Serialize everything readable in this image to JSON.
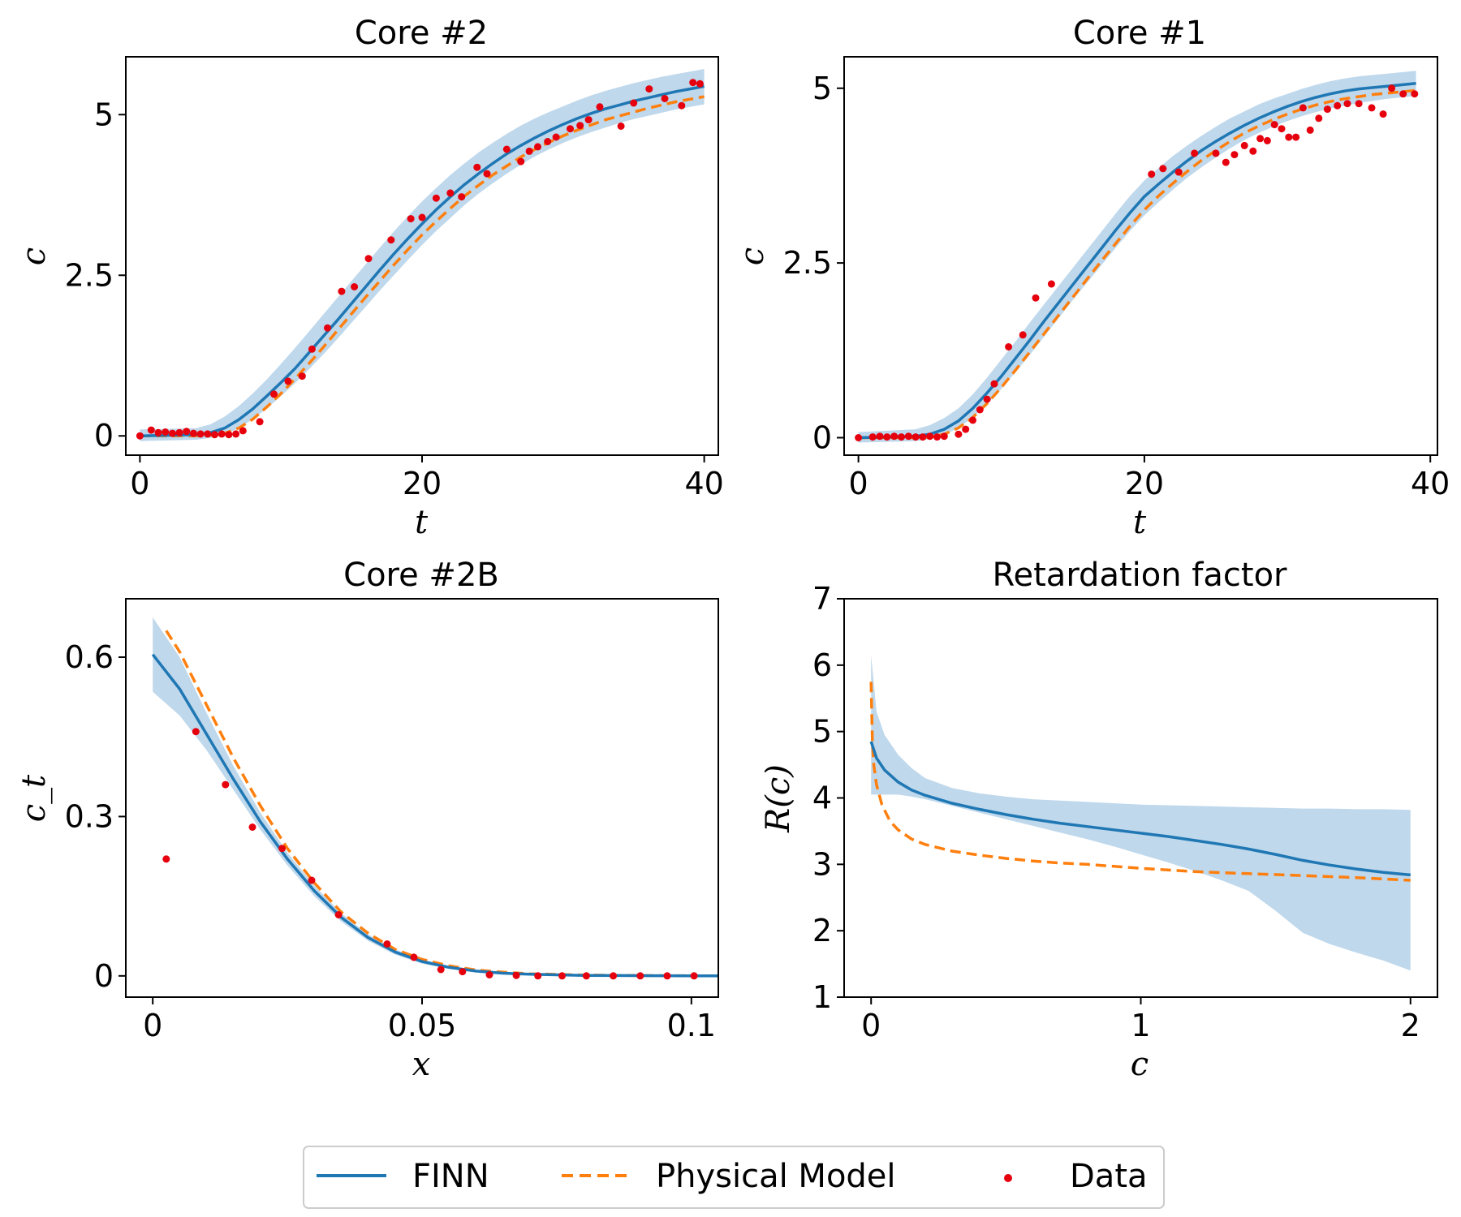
{
  "chart_data": [
    {
      "id": "p1",
      "type": "line",
      "title": "Core #2",
      "xlabel": "t",
      "ylabel": "c",
      "xlim": [
        -1,
        41
      ],
      "ylim": [
        -0.3,
        5.9
      ],
      "xticks": [
        0,
        20,
        40
      ],
      "xtick_labels": [
        "0",
        "20",
        "40"
      ],
      "yticks": [
        0,
        2.5,
        5
      ],
      "ytick_labels": [
        "0",
        "2.5",
        "5"
      ],
      "finn": {
        "x": [
          0,
          4,
          5,
          6,
          7,
          8,
          9,
          10,
          11,
          12,
          13,
          14,
          15,
          16,
          17,
          18,
          19,
          20,
          21,
          22,
          23,
          24,
          25,
          26,
          27,
          28,
          29,
          30,
          31,
          32,
          33,
          34,
          35,
          36,
          37,
          38,
          39,
          40
        ],
        "y": [
          0,
          0.02,
          0.05,
          0.12,
          0.25,
          0.42,
          0.62,
          0.83,
          1.05,
          1.3,
          1.55,
          1.8,
          2.06,
          2.32,
          2.58,
          2.83,
          3.07,
          3.3,
          3.52,
          3.72,
          3.91,
          4.08,
          4.24,
          4.39,
          4.52,
          4.64,
          4.75,
          4.85,
          4.94,
          5.02,
          5.09,
          5.15,
          5.21,
          5.26,
          5.31,
          5.36,
          5.4,
          5.44
        ],
        "band_lower": [
          -0.08,
          -0.06,
          -0.03,
          0.02,
          0.12,
          0.26,
          0.43,
          0.62,
          0.82,
          1.04,
          1.27,
          1.51,
          1.76,
          2.01,
          2.26,
          2.5,
          2.74,
          2.97,
          3.19,
          3.39,
          3.59,
          3.77,
          3.93,
          4.08,
          4.22,
          4.35,
          4.46,
          4.56,
          4.65,
          4.73,
          4.8,
          4.87,
          4.93,
          4.98,
          5.03,
          5.08,
          5.12,
          5.16
        ],
        "band_upper": [
          0.1,
          0.12,
          0.18,
          0.3,
          0.46,
          0.66,
          0.88,
          1.12,
          1.37,
          1.63,
          1.89,
          2.15,
          2.41,
          2.67,
          2.93,
          3.18,
          3.42,
          3.65,
          3.86,
          4.06,
          4.24,
          4.41,
          4.56,
          4.7,
          4.83,
          4.94,
          5.04,
          5.13,
          5.22,
          5.3,
          5.37,
          5.43,
          5.49,
          5.54,
          5.59,
          5.63,
          5.67,
          5.71
        ]
      },
      "physical": {
        "x": [
          0,
          4,
          5,
          6,
          7,
          8,
          9,
          10,
          11,
          12,
          13,
          14,
          15,
          16,
          17,
          18,
          19,
          20,
          21,
          22,
          23,
          24,
          25,
          26,
          27,
          28,
          29,
          30,
          31,
          32,
          33,
          34,
          35,
          36,
          37,
          38,
          39,
          40
        ],
        "y": [
          0,
          0.0,
          0.01,
          0.04,
          0.12,
          0.26,
          0.45,
          0.66,
          0.89,
          1.13,
          1.38,
          1.64,
          1.9,
          2.16,
          2.41,
          2.66,
          2.9,
          3.13,
          3.34,
          3.54,
          3.73,
          3.9,
          4.06,
          4.2,
          4.34,
          4.46,
          4.57,
          4.67,
          4.76,
          4.84,
          4.92,
          4.98,
          5.04,
          5.1,
          5.15,
          5.2,
          5.24,
          5.28
        ]
      },
      "data": {
        "x": [
          0,
          0.8,
          1.3,
          1.8,
          2.3,
          2.8,
          3.3,
          3.8,
          4.3,
          4.8,
          5.3,
          5.8,
          6.3,
          6.8,
          7.3,
          8.5,
          9.5,
          10.5,
          11.5,
          12.2,
          13.3,
          14.3,
          15.2,
          16.2,
          17.8,
          19.2,
          20,
          21,
          22,
          22.8,
          23.9,
          24.6,
          26,
          27,
          27.6,
          28.2,
          28.9,
          29.5,
          30.5,
          31.2,
          31.8,
          32.6,
          34.1,
          35,
          36.1,
          37.2,
          38.4,
          39.2,
          39.7
        ],
        "y": [
          0,
          0.09,
          0.05,
          0.06,
          0.04,
          0.05,
          0.07,
          0.04,
          0.03,
          0.03,
          0.02,
          0.03,
          0.02,
          0.03,
          0.08,
          0.22,
          0.65,
          0.85,
          0.93,
          1.35,
          1.68,
          2.25,
          2.32,
          2.76,
          3.05,
          3.38,
          3.4,
          3.7,
          3.78,
          3.72,
          4.18,
          4.08,
          4.46,
          4.27,
          4.43,
          4.5,
          4.58,
          4.65,
          4.78,
          4.83,
          4.92,
          5.12,
          4.82,
          5.18,
          5.4,
          5.25,
          5.14,
          5.5,
          5.48
        ]
      }
    },
    {
      "id": "p2",
      "type": "line",
      "title": "Core #1",
      "xlabel": "t",
      "ylabel": "c",
      "xlim": [
        -1,
        40.5
      ],
      "ylim": [
        -0.25,
        5.45
      ],
      "xticks": [
        0,
        20,
        40
      ],
      "xtick_labels": [
        "0",
        "20",
        "40"
      ],
      "yticks": [
        0,
        2.5,
        5
      ],
      "ytick_labels": [
        "0",
        "2.5",
        "5"
      ],
      "finn": {
        "x": [
          0,
          4,
          5,
          6,
          7,
          8,
          9,
          10,
          11,
          12,
          13,
          14,
          15,
          16,
          17,
          18,
          19,
          20,
          21,
          22,
          23,
          24,
          25,
          26,
          27,
          28,
          29,
          30,
          31,
          32,
          33,
          34,
          35,
          36,
          37,
          38,
          39
        ],
        "y": [
          0,
          0.02,
          0.05,
          0.12,
          0.24,
          0.42,
          0.64,
          0.88,
          1.14,
          1.4,
          1.67,
          1.93,
          2.19,
          2.45,
          2.71,
          2.97,
          3.22,
          3.45,
          3.63,
          3.8,
          3.96,
          4.11,
          4.24,
          4.36,
          4.47,
          4.57,
          4.66,
          4.74,
          4.81,
          4.87,
          4.92,
          4.96,
          4.99,
          5.01,
          5.03,
          5.05,
          5.07
        ],
        "band_lower": [
          -0.07,
          -0.05,
          -0.02,
          0.04,
          0.14,
          0.29,
          0.48,
          0.7,
          0.94,
          1.19,
          1.45,
          1.71,
          1.97,
          2.22,
          2.47,
          2.72,
          2.96,
          3.18,
          3.37,
          3.55,
          3.72,
          3.87,
          4.01,
          4.14,
          4.26,
          4.36,
          4.45,
          4.53,
          4.6,
          4.66,
          4.71,
          4.75,
          4.79,
          4.82,
          4.85,
          4.87,
          4.89
        ],
        "band_upper": [
          0.08,
          0.12,
          0.18,
          0.28,
          0.42,
          0.62,
          0.86,
          1.12,
          1.38,
          1.65,
          1.91,
          2.17,
          2.43,
          2.69,
          2.95,
          3.21,
          3.46,
          3.68,
          3.86,
          4.03,
          4.18,
          4.32,
          4.45,
          4.57,
          4.67,
          4.77,
          4.85,
          4.92,
          4.99,
          5.05,
          5.1,
          5.14,
          5.17,
          5.19,
          5.21,
          5.23,
          5.25
        ]
      },
      "physical": {
        "x": [
          0,
          4,
          5,
          6,
          7,
          8,
          9,
          10,
          11,
          12,
          13,
          14,
          15,
          16,
          17,
          18,
          19,
          20,
          21,
          22,
          23,
          24,
          25,
          26,
          27,
          28,
          29,
          30,
          31,
          32,
          33,
          34,
          35,
          36,
          37,
          38,
          39
        ],
        "y": [
          0,
          0.0,
          0.01,
          0.05,
          0.14,
          0.29,
          0.49,
          0.72,
          0.97,
          1.23,
          1.49,
          1.75,
          2.01,
          2.27,
          2.53,
          2.78,
          3.03,
          3.26,
          3.46,
          3.64,
          3.81,
          3.97,
          4.11,
          4.24,
          4.36,
          4.46,
          4.55,
          4.63,
          4.7,
          4.76,
          4.81,
          4.85,
          4.88,
          4.91,
          4.93,
          4.95,
          4.97
        ]
      },
      "data": {
        "x": [
          0,
          1,
          1.5,
          2,
          2.5,
          3,
          3.5,
          4,
          4.5,
          5,
          5.5,
          6,
          7,
          7.5,
          8,
          8.5,
          9,
          9.5,
          10.5,
          11.5,
          12.4,
          13.5,
          20.5,
          21.3,
          22.4,
          23.5,
          25,
          25.7,
          26.3,
          27,
          27.6,
          28.1,
          28.6,
          29.1,
          29.6,
          30.1,
          30.6,
          31.1,
          31.6,
          32.2,
          32.8,
          33.5,
          34.2,
          35,
          35.9,
          36.7,
          37.3,
          38.1,
          38.9
        ],
        "y": [
          0,
          0.01,
          0.02,
          0.01,
          0.02,
          0.01,
          0.02,
          0.01,
          0.01,
          0.02,
          0.01,
          0.02,
          0.05,
          0.12,
          0.25,
          0.4,
          0.55,
          0.77,
          1.3,
          1.47,
          2.0,
          2.2,
          3.77,
          3.85,
          3.8,
          4.07,
          4.07,
          3.94,
          4.05,
          4.18,
          4.1,
          4.28,
          4.25,
          4.48,
          4.42,
          4.3,
          4.3,
          4.72,
          4.4,
          4.57,
          4.7,
          4.75,
          4.78,
          4.78,
          4.72,
          4.63,
          5.0,
          4.92,
          4.92
        ]
      }
    },
    {
      "id": "p3",
      "type": "line",
      "title": "Core #2B",
      "xlabel": "x",
      "ylabel": "c_t",
      "xlim": [
        -0.005,
        0.105
      ],
      "ylim": [
        -0.04,
        0.71
      ],
      "xticks": [
        0,
        0.05,
        0.1
      ],
      "xtick_labels": [
        "0",
        "0.05",
        "0.1"
      ],
      "yticks": [
        0,
        0.3,
        0.6
      ],
      "ytick_labels": [
        "0",
        "0.3",
        "0.6"
      ],
      "finn": {
        "x": [
          0,
          0.005,
          0.01,
          0.015,
          0.02,
          0.025,
          0.03,
          0.035,
          0.04,
          0.045,
          0.05,
          0.055,
          0.06,
          0.065,
          0.07,
          0.08,
          0.09,
          0.1,
          0.105
        ],
        "y": [
          0.605,
          0.54,
          0.455,
          0.37,
          0.29,
          0.22,
          0.16,
          0.11,
          0.072,
          0.045,
          0.027,
          0.016,
          0.009,
          0.005,
          0.003,
          0.001,
          0.0005,
          0.0002,
          0.0
        ],
        "band_lower": [
          0.535,
          0.49,
          0.425,
          0.35,
          0.275,
          0.208,
          0.15,
          0.102,
          0.066,
          0.04,
          0.023,
          0.013,
          0.007,
          0.004,
          0.002,
          0.0008,
          0.0003,
          0.0001,
          0.0
        ],
        "band_upper": [
          0.675,
          0.6,
          0.495,
          0.395,
          0.307,
          0.232,
          0.17,
          0.118,
          0.078,
          0.05,
          0.031,
          0.019,
          0.011,
          0.007,
          0.004,
          0.0015,
          0.0007,
          0.0003,
          0.0001
        ]
      },
      "physical": {
        "x": [
          0.0025,
          0.005,
          0.01,
          0.015,
          0.02,
          0.025,
          0.03,
          0.035,
          0.04,
          0.045,
          0.05,
          0.055,
          0.06,
          0.065,
          0.07,
          0.08,
          0.09,
          0.1,
          0.105
        ],
        "y": [
          0.65,
          0.61,
          0.51,
          0.41,
          0.32,
          0.24,
          0.175,
          0.12,
          0.08,
          0.05,
          0.031,
          0.019,
          0.011,
          0.007,
          0.004,
          0.0015,
          0.0006,
          0.0002,
          0.0001
        ]
      },
      "data": {
        "x": [
          0.0025,
          0.008,
          0.0135,
          0.0185,
          0.024,
          0.0295,
          0.0345,
          0.0435,
          0.0485,
          0.0535,
          0.0575,
          0.0625,
          0.0675,
          0.0715,
          0.076,
          0.0805,
          0.0855,
          0.0905,
          0.0955,
          0.1005
        ],
        "y": [
          0.22,
          0.46,
          0.36,
          0.28,
          0.24,
          0.18,
          0.115,
          0.06,
          0.035,
          0.012,
          0.008,
          0.002,
          0.001,
          0.0,
          0.0,
          0.0,
          0.0,
          0.0,
          0.0,
          0.0
        ]
      }
    },
    {
      "id": "p4",
      "type": "line",
      "title": "Retardation factor",
      "xlabel": "c",
      "ylabel": "R(c)",
      "xlim": [
        -0.1,
        2.1
      ],
      "ylim": [
        1,
        7
      ],
      "xticks": [
        0,
        1,
        2
      ],
      "xtick_labels": [
        "0",
        "1",
        "2"
      ],
      "yticks": [
        1,
        2,
        3,
        4,
        5,
        6,
        7
      ],
      "ytick_labels": [
        "1",
        "2",
        "3",
        "4",
        "5",
        "6",
        "7"
      ],
      "finn": {
        "x": [
          0,
          0.02,
          0.05,
          0.1,
          0.15,
          0.2,
          0.3,
          0.4,
          0.5,
          0.6,
          0.7,
          0.8,
          0.9,
          1.0,
          1.1,
          1.2,
          1.3,
          1.4,
          1.5,
          1.6,
          1.7,
          1.8,
          1.9,
          2.0
        ],
        "y": [
          4.85,
          4.6,
          4.42,
          4.24,
          4.12,
          4.04,
          3.92,
          3.83,
          3.75,
          3.68,
          3.62,
          3.57,
          3.52,
          3.47,
          3.42,
          3.36,
          3.3,
          3.23,
          3.15,
          3.06,
          2.99,
          2.93,
          2.88,
          2.84
        ],
        "band_lower": [
          4.05,
          4.05,
          4.05,
          4.05,
          4.02,
          3.98,
          3.88,
          3.78,
          3.68,
          3.58,
          3.48,
          3.38,
          3.27,
          3.15,
          3.03,
          2.9,
          2.76,
          2.6,
          2.3,
          1.97,
          1.8,
          1.67,
          1.55,
          1.4
        ],
        "band_upper": [
          6.15,
          5.3,
          4.95,
          4.65,
          4.45,
          4.3,
          4.15,
          4.07,
          4.02,
          3.98,
          3.96,
          3.94,
          3.92,
          3.9,
          3.89,
          3.88,
          3.87,
          3.86,
          3.85,
          3.84,
          3.84,
          3.83,
          3.83,
          3.82
        ]
      },
      "physical": {
        "x": [
          0,
          0.005,
          0.01,
          0.02,
          0.04,
          0.07,
          0.1,
          0.15,
          0.2,
          0.3,
          0.4,
          0.5,
          0.6,
          0.7,
          0.8,
          0.9,
          1.0,
          1.2,
          1.4,
          1.6,
          1.8,
          2.0
        ],
        "y": [
          5.75,
          4.8,
          4.5,
          4.2,
          3.9,
          3.65,
          3.52,
          3.38,
          3.3,
          3.2,
          3.14,
          3.09,
          3.05,
          3.02,
          3.0,
          2.97,
          2.94,
          2.89,
          2.86,
          2.83,
          2.8,
          2.76
        ]
      }
    }
  ],
  "legend": {
    "placement": "bottom-center",
    "items": [
      {
        "label": "FINN",
        "style": "solid-line"
      },
      {
        "label": "Physical Model",
        "style": "dashed-line"
      },
      {
        "label": "Data",
        "style": "dot"
      }
    ]
  },
  "colors": {
    "finn": "#1f77b4",
    "band": "#bcd6eb",
    "physical": "#ff7f0e",
    "data": "#e6000d",
    "axis": "#000000",
    "legend_border": "#cccccc"
  }
}
